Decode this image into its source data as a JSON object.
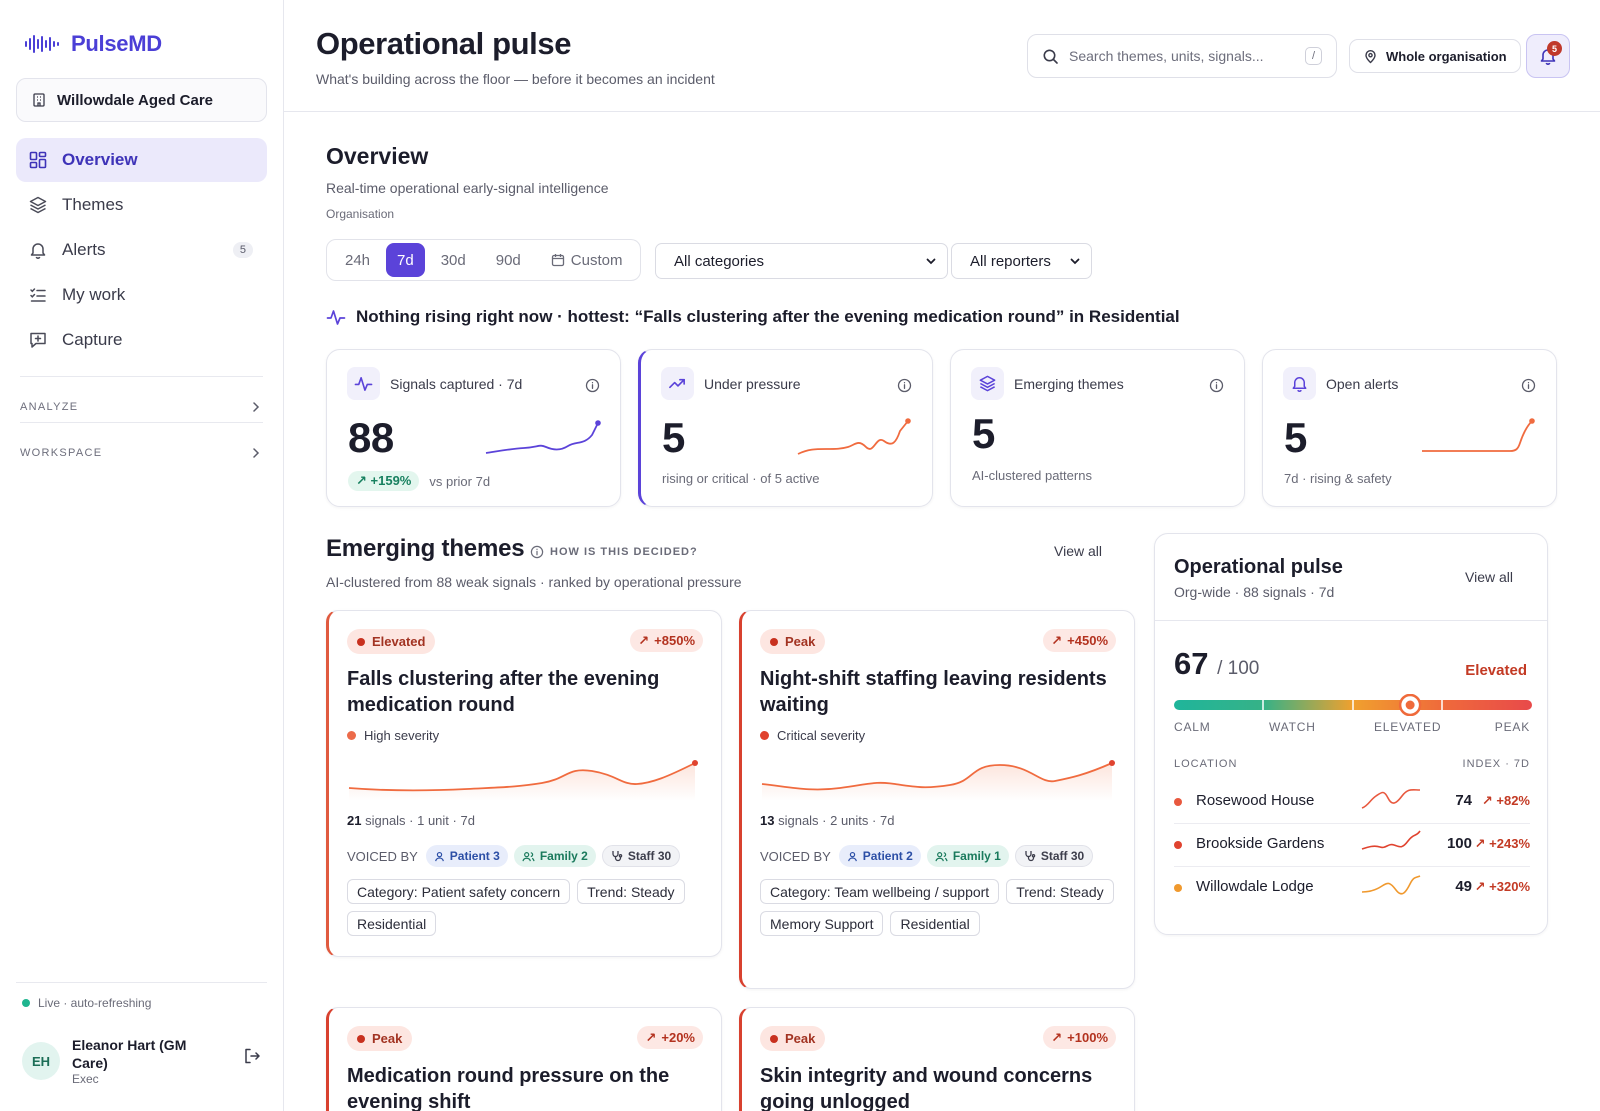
{
  "brand": {
    "name": "PulseMD"
  },
  "org_switcher": {
    "label": "Willowdale Aged Care"
  },
  "nav": [
    {
      "label": "Overview",
      "icon": "grid-icon",
      "active": true
    },
    {
      "label": "Themes",
      "icon": "layers-icon"
    },
    {
      "label": "Alerts",
      "icon": "bell-icon",
      "badge": "5"
    },
    {
      "label": "My work",
      "icon": "checklist-icon"
    },
    {
      "label": "Capture",
      "icon": "message-plus-icon"
    }
  ],
  "sections": [
    {
      "label": "ANALYZE"
    },
    {
      "label": "WORKSPACE"
    }
  ],
  "status": {
    "live": "Live · auto-refreshing"
  },
  "user": {
    "initials": "EH",
    "name": "Eleanor Hart (GM Care)",
    "role": "Exec"
  },
  "header": {
    "title": "Operational pulse",
    "subtitle": "What's building across the floor — before it becomes an incident",
    "search_placeholder": "Search themes, units, signals...",
    "search_shortcut": "/",
    "scope": "Whole organisation",
    "notifications": "5"
  },
  "overview": {
    "title": "Overview",
    "subtitle": "Real-time operational early-signal intelligence",
    "scope_label": "Organisation",
    "periods": [
      "24h",
      "7d",
      "30d",
      "90d"
    ],
    "selected_period": "7d",
    "custom_label": "Custom",
    "category_filter": "All categories",
    "reporter_filter": "All reporters",
    "hot_line": "Nothing rising right now · hottest: “Falls clustering after the evening medication round” in Residential"
  },
  "kpis": [
    {
      "label": "Signals captured · 7d",
      "value": "88",
      "delta": "+159%",
      "foot": "vs prior 7d",
      "icon": "pulse-icon",
      "spark_color": "#5b43d9"
    },
    {
      "label": "Under pressure",
      "value": "5",
      "foot": "rising or critical · of 5 active",
      "icon": "trend-up-icon",
      "spark_color": "#f06b3f"
    },
    {
      "label": "Emerging themes",
      "value": "5",
      "foot": "AI-clustered patterns",
      "icon": "layers-icon"
    },
    {
      "label": "Open alerts",
      "value": "5",
      "foot": "7d · rising & safety",
      "icon": "bell-icon",
      "spark_color": "#f06b3f"
    }
  ],
  "emerging": {
    "title": "Emerging themes",
    "help": "HOW IS THIS DECIDED?",
    "view_all": "View all",
    "subtitle": "AI-clustered from 88 weak signals · ranked by operational pressure",
    "voiced_by_label": "VOICED BY",
    "themes": [
      {
        "status": "Elevated",
        "delta": "+850%",
        "title": "Falls clustering after the evening medication round",
        "severity": "High severity",
        "signals": "21",
        "meta": "signals · 1 unit · 7d",
        "voices": {
          "patient": "Patient 3",
          "family": "Family 2",
          "staff": "Staff 30"
        },
        "tags": [
          "Category: Patient safety concern",
          "Trend: Steady",
          "Residential"
        ]
      },
      {
        "status": "Peak",
        "delta": "+450%",
        "title": "Night-shift staffing leaving residents waiting",
        "severity": "Critical severity",
        "signals": "13",
        "meta": "signals · 2 units · 7d",
        "voices": {
          "patient": "Patient 2",
          "family": "Family 1",
          "staff": "Staff 30"
        },
        "tags": [
          "Category: Team wellbeing / support",
          "Trend: Steady",
          "Memory Support",
          "Residential"
        ]
      },
      {
        "status": "Peak",
        "delta": "+20%",
        "title": "Medication round pressure on the evening shift"
      },
      {
        "status": "Peak",
        "delta": "+100%",
        "title": "Skin integrity and wound concerns going unlogged"
      }
    ]
  },
  "pulse": {
    "title": "Operational pulse",
    "subtitle": "Org-wide · 88 signals · 7d",
    "view_all": "View all",
    "score": "67",
    "score_max": "/ 100",
    "level": "Elevated",
    "gauge_value": 0.67,
    "gauge_labels": [
      "CALM",
      "WATCH",
      "ELEVATED",
      "PEAK"
    ],
    "location_header": "LOCATION",
    "index_header": "INDEX · 7D",
    "locations": [
      {
        "name": "Rosewood House",
        "value": "74",
        "change": "+82%",
        "color": "#e8583e"
      },
      {
        "name": "Brookside Gardens",
        "value": "100",
        "change": "+243%",
        "color": "#e0432f"
      },
      {
        "name": "Willowdale Lodge",
        "value": "49",
        "change": "+320%",
        "color": "#f0992e"
      }
    ]
  },
  "colors": {
    "accent": "#5b43d9",
    "elevated": "#e05a3f",
    "peak": "#d8412f",
    "calm": "#1fb59b"
  }
}
